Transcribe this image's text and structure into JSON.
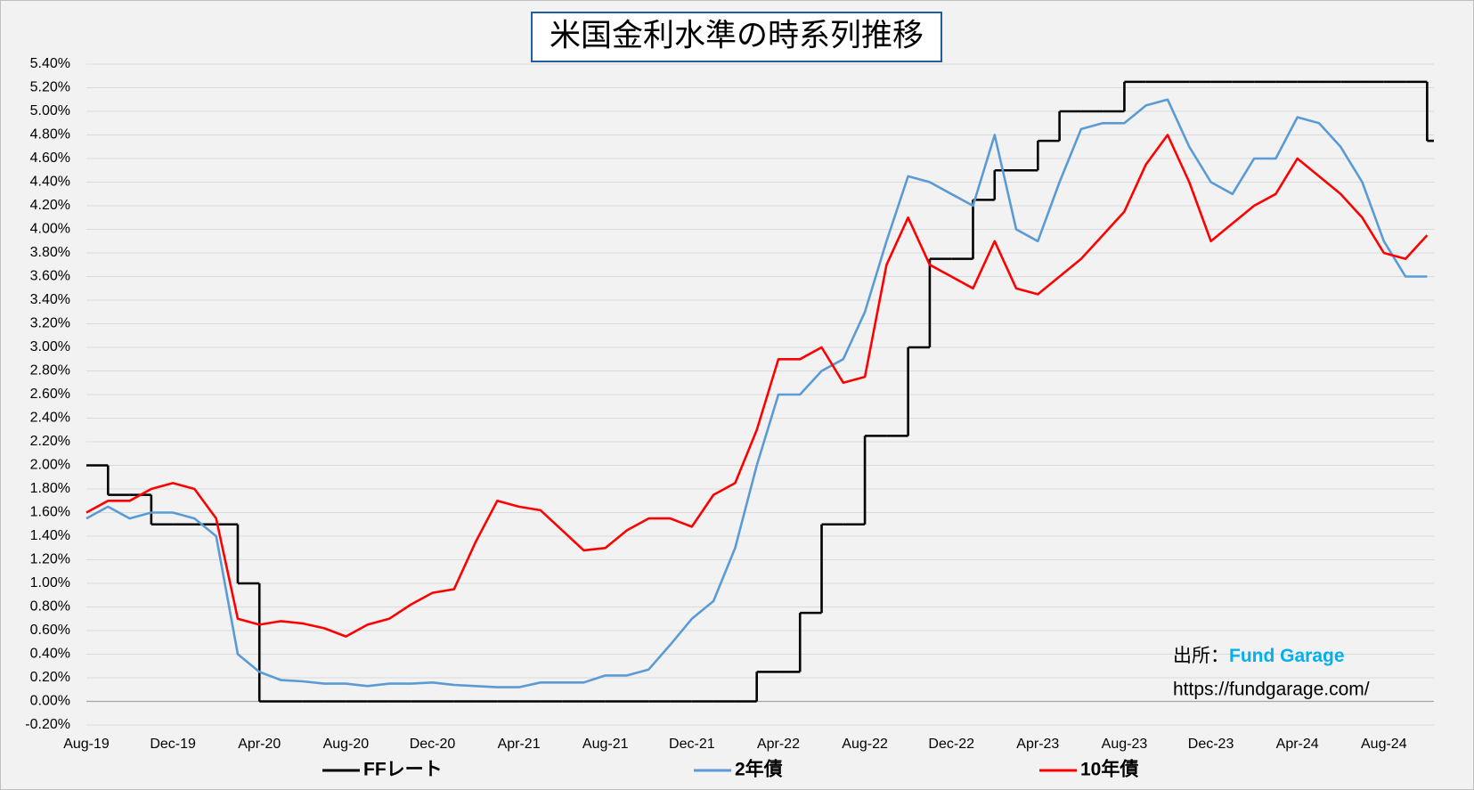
{
  "chart_data": {
    "type": "line",
    "title": "米国金利水準の時系列推移",
    "categories": [
      "Aug-19",
      null,
      null,
      null,
      "Dec-19",
      null,
      null,
      null,
      "Apr-20",
      null,
      null,
      null,
      "Aug-20",
      null,
      null,
      null,
      "Dec-20",
      null,
      null,
      null,
      "Apr-21",
      null,
      null,
      null,
      "Aug-21",
      null,
      null,
      null,
      "Dec-21",
      null,
      null,
      null,
      "Apr-22",
      null,
      null,
      null,
      "Aug-22",
      null,
      null,
      null,
      "Dec-22",
      null,
      null,
      null,
      "Apr-23",
      null,
      null,
      null,
      "Aug-23",
      null,
      null,
      null,
      "Dec-23",
      null,
      null,
      null,
      "Apr-24",
      null,
      null,
      null,
      "Aug-24",
      null,
      null
    ],
    "series": [
      {
        "name": "FFレート",
        "color": "#000000",
        "step": true,
        "values": [
          2.0,
          1.75,
          1.75,
          1.5,
          1.5,
          1.5,
          1.5,
          1.0,
          0.0,
          0.0,
          0.0,
          0.0,
          0.0,
          0.0,
          0.0,
          0.0,
          0.0,
          0.0,
          0.0,
          0.0,
          0.0,
          0.0,
          0.0,
          0.0,
          0.0,
          0.0,
          0.0,
          0.0,
          0.0,
          0.0,
          0.0,
          0.25,
          0.25,
          0.75,
          1.5,
          1.5,
          2.25,
          2.25,
          3.0,
          3.75,
          3.75,
          4.25,
          4.5,
          4.5,
          4.75,
          5.0,
          5.0,
          5.0,
          5.25,
          5.25,
          5.25,
          5.25,
          5.25,
          5.25,
          5.25,
          5.25,
          5.25,
          5.25,
          5.25,
          5.25,
          5.25,
          5.25,
          4.75
        ]
      },
      {
        "name": "2年債",
        "color": "#5b9bd5",
        "step": false,
        "values": [
          1.55,
          1.65,
          1.55,
          1.6,
          1.6,
          1.55,
          1.4,
          0.4,
          0.25,
          0.18,
          0.17,
          0.15,
          0.15,
          0.13,
          0.15,
          0.15,
          0.16,
          0.14,
          0.13,
          0.12,
          0.12,
          0.16,
          0.16,
          0.16,
          0.22,
          0.22,
          0.27,
          0.48,
          0.7,
          0.85,
          1.3,
          2.0,
          2.6,
          2.6,
          2.8,
          2.9,
          3.3,
          3.9,
          4.45,
          4.4,
          4.3,
          4.2,
          4.8,
          4.0,
          3.9,
          4.4,
          4.85,
          4.9,
          4.9,
          5.05,
          5.1,
          4.7,
          4.4,
          4.3,
          4.6,
          4.6,
          4.95,
          4.9,
          4.7,
          4.4,
          3.9,
          3.6,
          3.6
        ]
      },
      {
        "name": "10年債",
        "color": "#ff0000",
        "step": false,
        "values": [
          1.6,
          1.7,
          1.7,
          1.8,
          1.85,
          1.8,
          1.55,
          0.7,
          0.65,
          0.68,
          0.66,
          0.62,
          0.55,
          0.65,
          0.7,
          0.82,
          0.92,
          0.95,
          1.35,
          1.7,
          1.65,
          1.62,
          1.45,
          1.28,
          1.3,
          1.45,
          1.55,
          1.55,
          1.48,
          1.75,
          1.85,
          2.3,
          2.9,
          2.9,
          3.0,
          2.7,
          2.75,
          3.7,
          4.1,
          3.7,
          3.6,
          3.5,
          3.9,
          3.5,
          3.45,
          3.6,
          3.75,
          3.95,
          4.15,
          4.55,
          4.8,
          4.4,
          3.9,
          4.05,
          4.2,
          4.3,
          4.6,
          4.45,
          4.3,
          4.1,
          3.8,
          3.75,
          3.95
        ]
      }
    ],
    "ylim": [
      -0.2,
      5.4
    ],
    "yticks": [
      {
        "value": -0.2,
        "label": "-0.20%"
      },
      {
        "value": 0,
        "label": "0.00%"
      },
      {
        "value": 0.2,
        "label": "0.20%"
      },
      {
        "value": 0.4,
        "label": "0.40%"
      },
      {
        "value": 0.6,
        "label": "0.60%"
      },
      {
        "value": 0.8,
        "label": "0.80%"
      },
      {
        "value": 1.0,
        "label": "1.00%"
      },
      {
        "value": 1.2,
        "label": "1.20%"
      },
      {
        "value": 1.4,
        "label": "1.40%"
      },
      {
        "value": 1.6,
        "label": "1.60%"
      },
      {
        "value": 1.8,
        "label": "1.80%"
      },
      {
        "value": 2.0,
        "label": "2.00%"
      },
      {
        "value": 2.2,
        "label": "2.20%"
      },
      {
        "value": 2.4,
        "label": "2.40%"
      },
      {
        "value": 2.6,
        "label": "2.60%"
      },
      {
        "value": 2.8,
        "label": "2.80%"
      },
      {
        "value": 3.0,
        "label": "3.00%"
      },
      {
        "value": 3.2,
        "label": "3.20%"
      },
      {
        "value": 3.4,
        "label": "3.40%"
      },
      {
        "value": 3.6,
        "label": "3.60%"
      },
      {
        "value": 3.8,
        "label": "3.80%"
      },
      {
        "value": 4.0,
        "label": "4.00%"
      },
      {
        "value": 4.2,
        "label": "4.20%"
      },
      {
        "value": 4.4,
        "label": "4.40%"
      },
      {
        "value": 4.6,
        "label": "4.60%"
      },
      {
        "value": 4.8,
        "label": "4.80%"
      },
      {
        "value": 5.0,
        "label": "5.00%"
      },
      {
        "value": 5.2,
        "label": "5.20%"
      },
      {
        "value": 5.4,
        "label": "5.40%"
      }
    ],
    "grid": true,
    "legend": "bottom",
    "source": {
      "prefix": "出所：",
      "name": "Fund Garage",
      "name_color": "#00b0f0",
      "url": "https://fundgarage.com/"
    }
  }
}
